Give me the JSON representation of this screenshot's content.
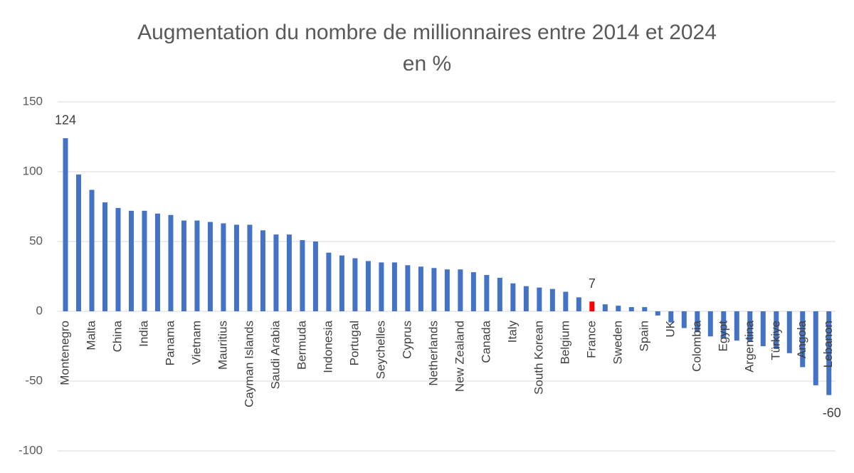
{
  "chart_data": {
    "type": "bar",
    "title": "Augmentation du nombre de millionnaires entre 2014 et 2024",
    "subtitle": "en %",
    "categories": [
      "Montenegro",
      null,
      "Malta",
      null,
      "China",
      null,
      "India",
      null,
      "Panama",
      null,
      "Vietnam",
      null,
      "Mauritius",
      null,
      "Cayman Islands",
      null,
      "Saudi Arabia",
      null,
      "Bermuda",
      null,
      "Indonesia",
      null,
      "Portugal",
      null,
      "Seychelles",
      null,
      "Cyprus",
      null,
      "Netherlands",
      null,
      "New Zealand",
      null,
      "Canada",
      null,
      "Italy",
      null,
      "South Korean",
      null,
      "Belgium",
      null,
      "France",
      null,
      "Sweden",
      null,
      "Spain",
      null,
      "UK",
      null,
      "Colombia",
      null,
      "Egypt",
      null,
      "Argentina",
      null,
      "Türkiye",
      null,
      "Angola",
      null,
      "Lebanon"
    ],
    "values": [
      124,
      98,
      87,
      78,
      74,
      72,
      72,
      70,
      69,
      65,
      65,
      64,
      63,
      62,
      62,
      58,
      55,
      55,
      51,
      50,
      42,
      40,
      38,
      36,
      35,
      35,
      33,
      32,
      31,
      30,
      30,
      28,
      26,
      24,
      20,
      18,
      17,
      16,
      14,
      10,
      7,
      5,
      4,
      3,
      3,
      -3,
      -8,
      -12,
      -15,
      -18,
      -19,
      -21,
      -22,
      -25,
      -27,
      -30,
      -40,
      -53,
      -60
    ],
    "color": "#4472c4",
    "highlight_color": "#ff0000",
    "highlight": [
      40
    ],
    "label_indices": [
      0,
      40,
      58
    ],
    "ylim": [
      -100,
      150
    ],
    "yticks": [
      -100,
      -50,
      0,
      50,
      100,
      150
    ],
    "grid": true
  }
}
